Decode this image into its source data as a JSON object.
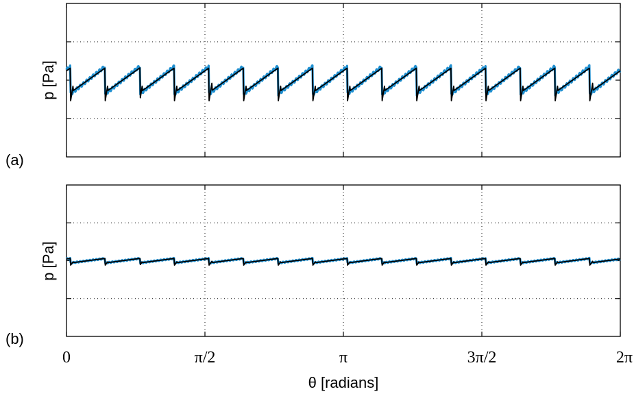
{
  "chart_data": [
    {
      "type": "line",
      "panel_label": "(a)",
      "ylabel": "p [Pa]",
      "xlim": [
        0,
        6.2832
      ],
      "ylim": [
        -1,
        1
      ],
      "grid": true,
      "pulses": 16,
      "series": [
        {
          "color": "#1f8fd0",
          "shape": "sawtooth",
          "level": 0.0,
          "amplitude": 0.18,
          "drop": 0.0
        },
        {
          "color": "#000000",
          "shape": "sawtooth",
          "level": 0.0,
          "amplitude": 0.16,
          "drop": 0.22
        }
      ]
    },
    {
      "type": "line",
      "panel_label": "(b)",
      "ylabel": "p [Pa]",
      "xlim": [
        0,
        6.2832
      ],
      "ylim": [
        -1,
        1
      ],
      "grid": true,
      "pulses": 16,
      "series": [
        {
          "color": "#1f8fd0",
          "shape": "sawtooth",
          "level": 0.0,
          "amplitude": 0.03,
          "drop": 0.0
        },
        {
          "color": "#000000",
          "shape": "sawtooth",
          "level": 0.0,
          "amplitude": 0.03,
          "drop": 0.05
        }
      ]
    }
  ],
  "x_axis": {
    "label": "θ [radians]",
    "ticks": [
      {
        "value": 0,
        "label": "0"
      },
      {
        "value": 1.5708,
        "label": "π/2"
      },
      {
        "value": 3.1416,
        "label": "π"
      },
      {
        "value": 4.7124,
        "label": "3π/2"
      },
      {
        "value": 6.2832,
        "label": "2π"
      }
    ]
  }
}
